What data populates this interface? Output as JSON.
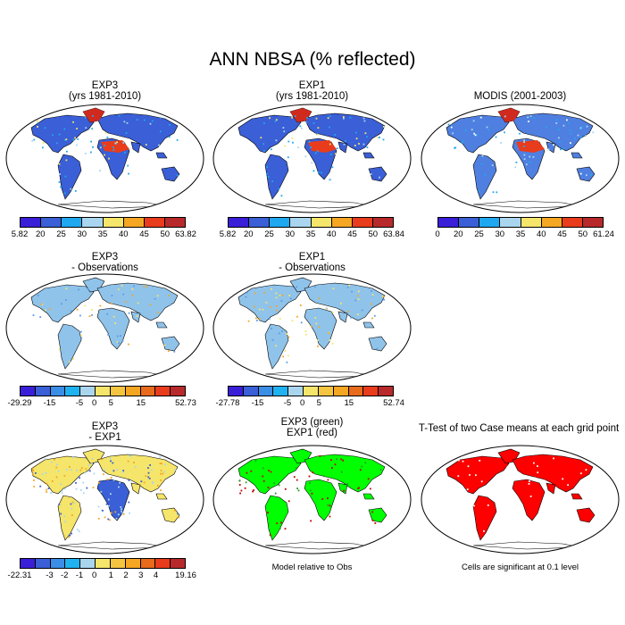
{
  "title": "ANN NBSA (% reflected)",
  "colors": {
    "ocean": "#ffffff",
    "coast": "#000000",
    "model_land": "#3f6fd6",
    "obs_land": "#4f7fe0",
    "diff_land": "#8fc3ea",
    "sig": "#ff0000",
    "green": "#00ff00",
    "red_dots": "#c00000"
  },
  "palette_main": [
    "#3a1fd8",
    "#3a5fd6",
    "#1fa8f0",
    "#a9d6ee",
    "#f5e56a",
    "#f5a623",
    "#e83c1c",
    "#b8292b"
  ],
  "palette_diff": [
    "#3a1fd8",
    "#3a5fd6",
    "#3a8ee6",
    "#1fb2f0",
    "#a9d6ee",
    "#f5e56a",
    "#f5c542",
    "#f5a623",
    "#e86a1c",
    "#e83c1c",
    "#b8292b"
  ],
  "chart_data": [
    {
      "type": "heatmap",
      "name": "EXP3",
      "title": [
        "EXP3",
        "(yrs 1981-2010)"
      ],
      "ticks": [
        "5.82",
        "20",
        "25",
        "30",
        "35",
        "40",
        "45",
        "50",
        "63.82"
      ]
    },
    {
      "type": "heatmap",
      "name": "EXP1",
      "title": [
        "EXP1",
        "(yrs 1981-2010)"
      ],
      "ticks": [
        "5.82",
        "20",
        "25",
        "30",
        "35",
        "40",
        "45",
        "50",
        "63.84"
      ]
    },
    {
      "type": "heatmap",
      "name": "MODIS",
      "title": [
        "MODIS (2001-2003)",
        ""
      ],
      "ticks": [
        "0",
        "20",
        "25",
        "30",
        "35",
        "40",
        "45",
        "50",
        "61.24"
      ]
    },
    {
      "type": "heatmap",
      "name": "EXP3 - Observations",
      "title": [
        "EXP3",
        "- Observations"
      ],
      "ticks": [
        "-29.29",
        "-15",
        "-5",
        "0",
        "5",
        "15",
        "52.73"
      ]
    },
    {
      "type": "heatmap",
      "name": "EXP1 - Observations",
      "title": [
        "EXP1",
        "- Observations"
      ],
      "ticks": [
        "-27.78",
        "-15",
        "-5",
        "0",
        "5",
        "15",
        "52.74"
      ]
    },
    {
      "type": "heatmap",
      "name": "EXP3 - EXP1",
      "title": [
        "EXP3",
        "- EXP1"
      ],
      "ticks": [
        "-22.31",
        "-3",
        "-2",
        "-1",
        "0",
        "1",
        "2",
        "3",
        "4",
        "19.16"
      ]
    },
    {
      "type": "heatmap",
      "name": "EXP3 (green) EXP1 (red)",
      "title": [
        "EXP3 (green)",
        "EXP1 (red)"
      ],
      "note": "Model relative to Obs"
    },
    {
      "type": "heatmap",
      "name": "T-Test",
      "title": [
        "T-Test of two Case means at each grid point",
        ""
      ],
      "note": "Cells are significant at 0.1 level"
    }
  ]
}
